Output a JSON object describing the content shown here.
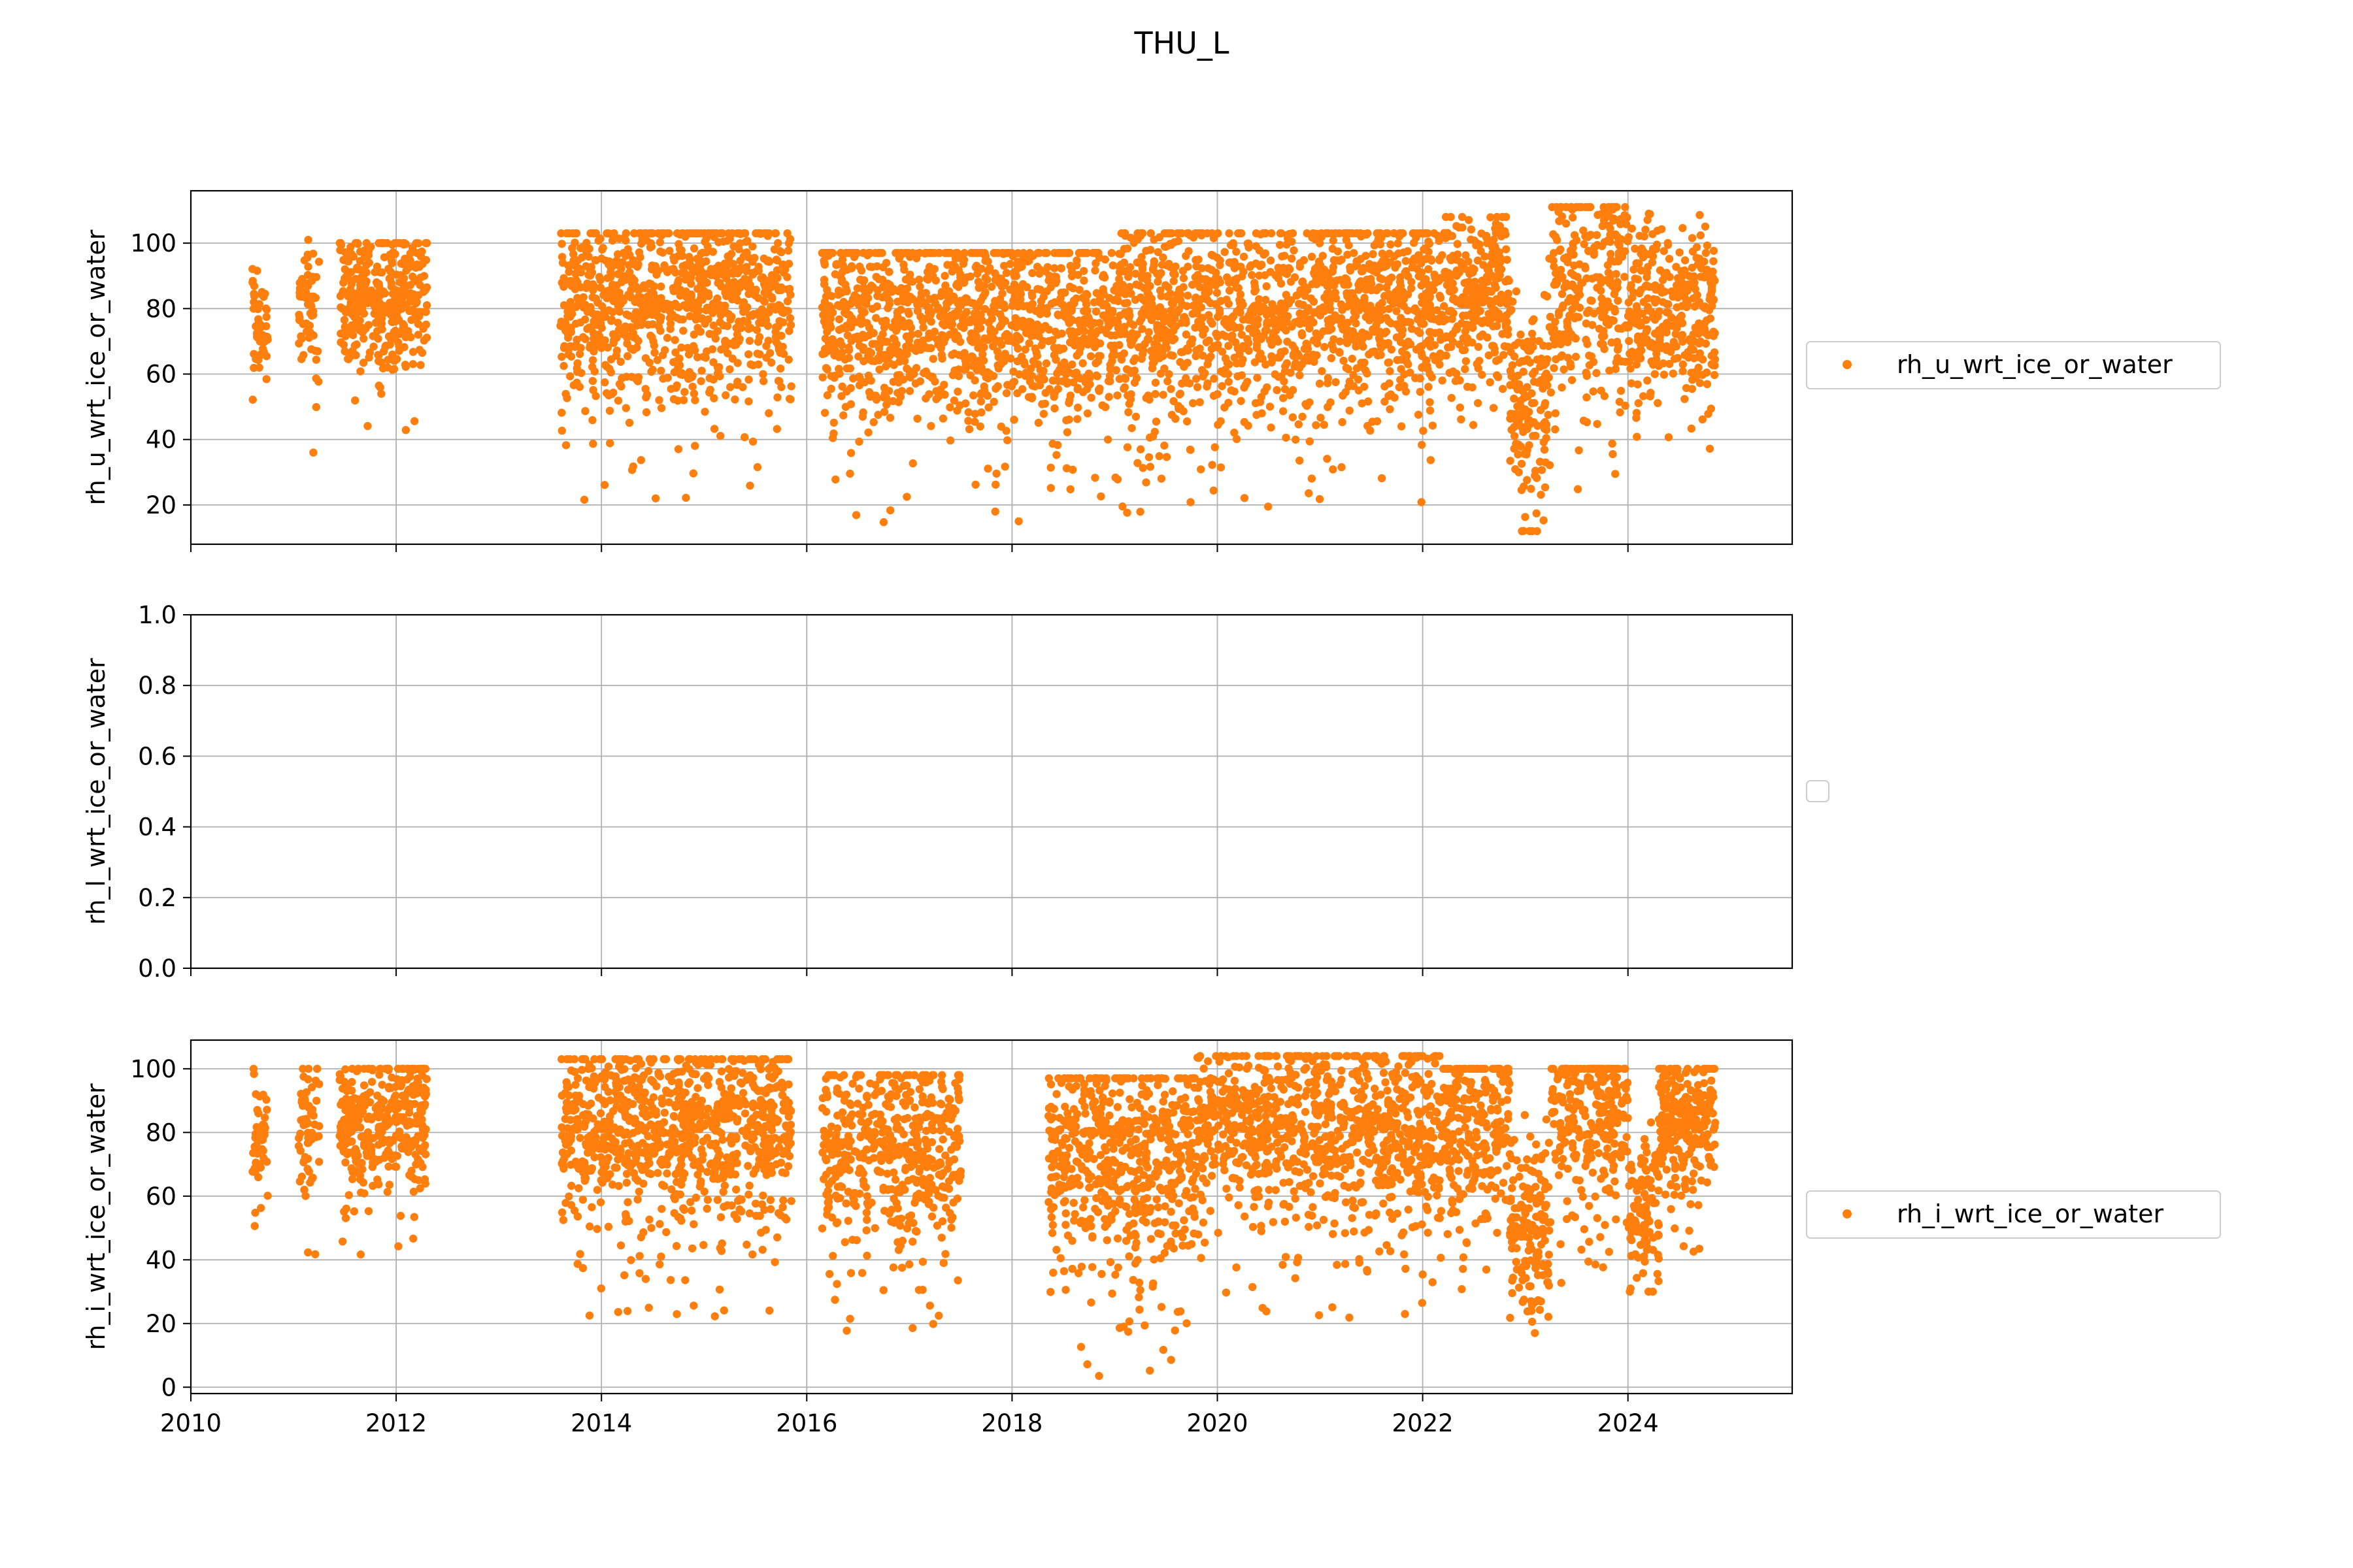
{
  "figure": {
    "title": "THU_L",
    "colors": {
      "series": "#ff7f0e",
      "grid": "#b0b0b0",
      "axes": "#000000"
    }
  },
  "chart_data": [
    {
      "type": "scatter",
      "ylabel": "rh_u_wrt_ice_or_water",
      "xlabel": "",
      "xlim": [
        2010.0,
        2025.6
      ],
      "ylim": [
        8,
        116
      ],
      "yticks": [
        20,
        40,
        60,
        80,
        100
      ],
      "xticks": [
        2010,
        2012,
        2014,
        2016,
        2018,
        2020,
        2022,
        2024
      ],
      "xticks_labeled": false,
      "grid": true,
      "legend": {
        "position": "right",
        "entries": [
          "rh_u_wrt_ice_or_water"
        ]
      },
      "series": [
        {
          "name": "rh_u_wrt_ice_or_water",
          "color": "#ff7f0e",
          "segments": [
            {
              "x": [
                2010.6,
                2010.75
              ],
              "y": [
                48,
                100
              ],
              "mean": 78,
              "note_count": 90
            },
            {
              "x": [
                2011.05,
                2011.25
              ],
              "y": [
                36,
                101
              ],
              "mean": 80,
              "note_count": 110
            },
            {
              "x": [
                2011.45,
                2012.3
              ],
              "y": [
                38,
                100
              ],
              "mean": 84,
              "note_count": 650
            },
            {
              "x": [
                2013.6,
                2015.85
              ],
              "y": [
                21,
                103
              ],
              "mean": 83,
              "note_count": 1700
            },
            {
              "x": [
                2016.15,
                2019.0
              ],
              "y": [
                14,
                97
              ],
              "mean": 76,
              "note_count": 2100
            },
            {
              "x": [
                2019.0,
                2020.9
              ],
              "y": [
                17,
                103
              ],
              "mean": 78,
              "note_count": 1400
            },
            {
              "x": [
                2020.9,
                2022.2
              ],
              "y": [
                20,
                103
              ],
              "mean": 82,
              "note_count": 1000
            },
            {
              "x": [
                2022.2,
                2022.85
              ],
              "y": [
                38,
                108
              ],
              "mean": 84,
              "note_count": 500
            },
            {
              "x": [
                2022.85,
                2023.25
              ],
              "y": [
                12,
                108
              ],
              "mean": 52,
              "note_count": 300
            },
            {
              "x": [
                2023.25,
                2024.0
              ],
              "y": [
                22,
                111
              ],
              "mean": 88,
              "note_count": 500
            },
            {
              "x": [
                2024.0,
                2024.85
              ],
              "y": [
                37,
                109
              ],
              "mean": 80,
              "note_count": 600
            }
          ]
        }
      ]
    },
    {
      "type": "scatter",
      "ylabel": "rh_l_wrt_ice_or_water",
      "xlabel": "",
      "xlim": [
        2010.0,
        2025.6
      ],
      "ylim": [
        0.0,
        1.0
      ],
      "yticks": [
        0.0,
        0.2,
        0.4,
        0.6,
        0.8,
        1.0
      ],
      "ytick_labels": [
        "0.0",
        "0.2",
        "0.4",
        "0.6",
        "0.8",
        "1.0"
      ],
      "xticks": [
        2010,
        2012,
        2014,
        2016,
        2018,
        2020,
        2022,
        2024
      ],
      "xticks_labeled": false,
      "grid": true,
      "legend": {
        "position": "right",
        "entries": []
      },
      "series": []
    },
    {
      "type": "scatter",
      "ylabel": "rh_i_wrt_ice_or_water",
      "xlabel": "",
      "xlim": [
        2010.0,
        2025.6
      ],
      "ylim": [
        -2,
        109
      ],
      "yticks": [
        0,
        20,
        40,
        60,
        80,
        100
      ],
      "xticks": [
        2010,
        2012,
        2014,
        2016,
        2018,
        2020,
        2022,
        2024
      ],
      "xtick_labels": [
        "2010",
        "2012",
        "2014",
        "2016",
        "2018",
        "2020",
        "2022",
        "2024"
      ],
      "xticks_labeled": true,
      "grid": true,
      "legend": {
        "position": "right",
        "entries": [
          "rh_i_wrt_ice_or_water"
        ]
      },
      "series": [
        {
          "name": "rh_i_wrt_ice_or_water",
          "color": "#ff7f0e",
          "segments": [
            {
              "x": [
                2010.6,
                2010.75
              ],
              "y": [
                48,
                100
              ],
              "mean": 78,
              "note_count": 90
            },
            {
              "x": [
                2011.05,
                2011.25
              ],
              "y": [
                37,
                100
              ],
              "mean": 82,
              "note_count": 110
            },
            {
              "x": [
                2011.45,
                2012.3
              ],
              "y": [
                40,
                100
              ],
              "mean": 84,
              "note_count": 650
            },
            {
              "x": [
                2013.6,
                2015.85
              ],
              "y": [
                22,
                103
              ],
              "mean": 82,
              "note_count": 1700
            },
            {
              "x": [
                2016.15,
                2017.5
              ],
              "y": [
                16,
                98
              ],
              "mean": 75,
              "note_count": 900
            },
            {
              "x": [
                2018.35,
                2019.8
              ],
              "y": [
                2,
                97
              ],
              "mean": 75,
              "note_count": 1100
            },
            {
              "x": [
                2019.8,
                2022.2
              ],
              "y": [
                20,
                104
              ],
              "mean": 82,
              "note_count": 1700
            },
            {
              "x": [
                2022.2,
                2022.85
              ],
              "y": [
                18,
                100
              ],
              "mean": 82,
              "note_count": 450
            },
            {
              "x": [
                2022.85,
                2023.25
              ],
              "y": [
                17,
                100
              ],
              "mean": 50,
              "note_count": 300
            },
            {
              "x": [
                2023.25,
                2024.0
              ],
              "y": [
                26,
                100
              ],
              "mean": 86,
              "note_count": 500
            },
            {
              "x": [
                2024.0,
                2024.3
              ],
              "y": [
                30,
                100
              ],
              "mean": 55,
              "note_count": 200
            },
            {
              "x": [
                2024.3,
                2024.85
              ],
              "y": [
                37,
                100
              ],
              "mean": 84,
              "note_count": 450
            }
          ]
        }
      ]
    }
  ]
}
